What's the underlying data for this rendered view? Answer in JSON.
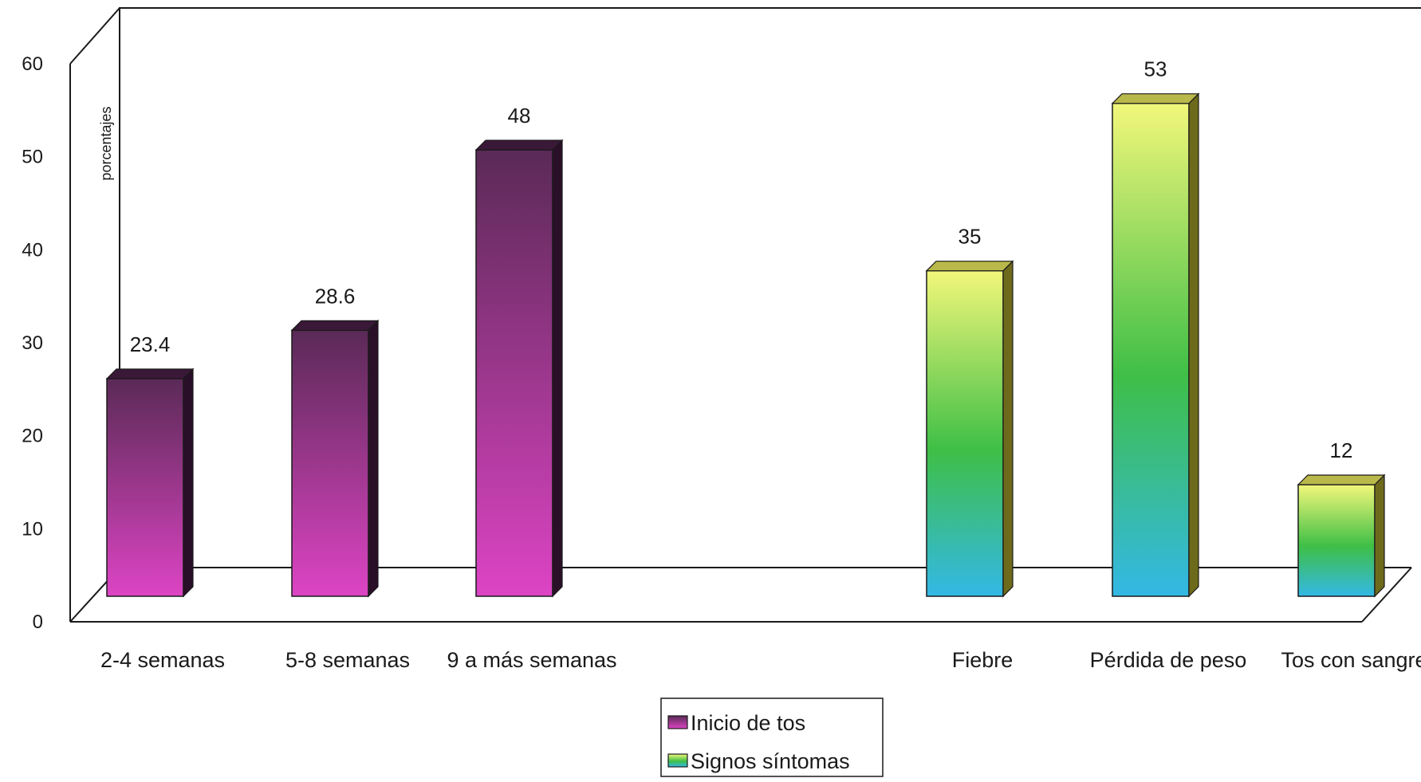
{
  "chart_data": {
    "type": "bar",
    "title": "",
    "xlabel": "",
    "ylabel": "porcentajes",
    "ylim": [
      0,
      60
    ],
    "yticks": [
      0,
      10,
      20,
      30,
      40,
      50,
      60
    ],
    "grid": false,
    "style": "3d",
    "legend_position": "bottom-center",
    "categories": [
      "2-4 semanas",
      "5-8 semanas",
      "9 a más semanas",
      "Fiebre",
      "Pérdida de peso",
      "Tos con sangre"
    ],
    "series": [
      {
        "name": "Inicio de tos",
        "color_top": "#5a2a56",
        "color_bottom": "#dd44c4",
        "points": [
          {
            "category": "2-4 semanas",
            "value": 23.4,
            "label": "23.4"
          },
          {
            "category": "5-8 semanas",
            "value": 28.6,
            "label": "28.6"
          },
          {
            "category": "9 a más semanas",
            "value": 48,
            "label": "48"
          }
        ]
      },
      {
        "name": "Signos síntomas",
        "color_top": "#f2f77a",
        "color_mid": "#3fbf46",
        "color_bottom": "#33b8e6",
        "points": [
          {
            "category": "Fiebre",
            "value": 35,
            "label": "35"
          },
          {
            "category": "Pérdida de peso",
            "value": 53,
            "label": "53"
          },
          {
            "category": "Tos con sangre",
            "value": 12,
            "label": "12"
          }
        ]
      }
    ]
  }
}
